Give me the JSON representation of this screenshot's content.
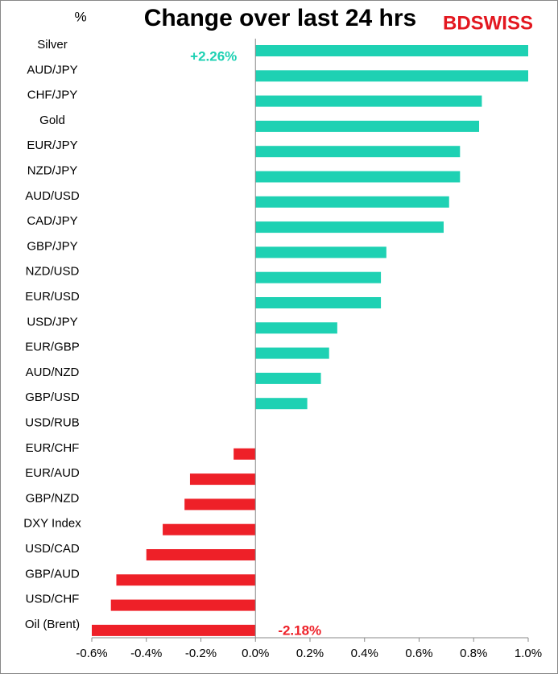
{
  "chart_data": {
    "type": "hbar",
    "title": "Change over last 24 hrs",
    "unit_label": "%",
    "logo": "BDSWISS",
    "categories": [
      "Silver",
      "AUD/JPY",
      "CHF/JPY",
      "Gold",
      "EUR/JPY",
      "NZD/JPY",
      "AUD/USD",
      "CAD/JPY",
      "GBP/JPY",
      "NZD/USD",
      "EUR/USD",
      "USD/JPY",
      "EUR/GBP",
      "AUD/NZD",
      "GBP/USD",
      "USD/RUB",
      "EUR/CHF",
      "EUR/AUD",
      "GBP/NZD",
      "DXY Index",
      "USD/CAD",
      "GBP/AUD",
      "USD/CHF",
      "Oil (Brent)"
    ],
    "values": [
      2.26,
      1.0,
      0.83,
      0.82,
      0.75,
      0.75,
      0.71,
      0.69,
      0.48,
      0.46,
      0.46,
      0.3,
      0.27,
      0.24,
      0.19,
      0,
      -0.08,
      -0.24,
      -0.26,
      -0.34,
      -0.4,
      -0.51,
      -0.53,
      -2.18
    ],
    "value_labels": [
      "+2.26%",
      null,
      null,
      null,
      null,
      null,
      null,
      null,
      null,
      null,
      null,
      null,
      null,
      null,
      null,
      null,
      null,
      null,
      null,
      null,
      null,
      null,
      null,
      "-2.18%"
    ],
    "positive_color": "#1ed1b3",
    "negative_color": "#ee2028",
    "xlim": [
      -0.6,
      1.0
    ],
    "xticks": [
      {
        "value": -0.6,
        "label": "-0.6%"
      },
      {
        "value": -0.4,
        "label": "-0.4%"
      },
      {
        "value": -0.2,
        "label": "-0.2%"
      },
      {
        "value": 0,
        "label": "0.0%"
      },
      {
        "value": 0.2,
        "label": "0.2%"
      },
      {
        "value": 0.4,
        "label": "0.4%"
      },
      {
        "value": 0.6,
        "label": "0.6%"
      },
      {
        "value": 0.8,
        "label": "0.8%"
      },
      {
        "value": 1.0,
        "label": "1.0%"
      }
    ]
  }
}
